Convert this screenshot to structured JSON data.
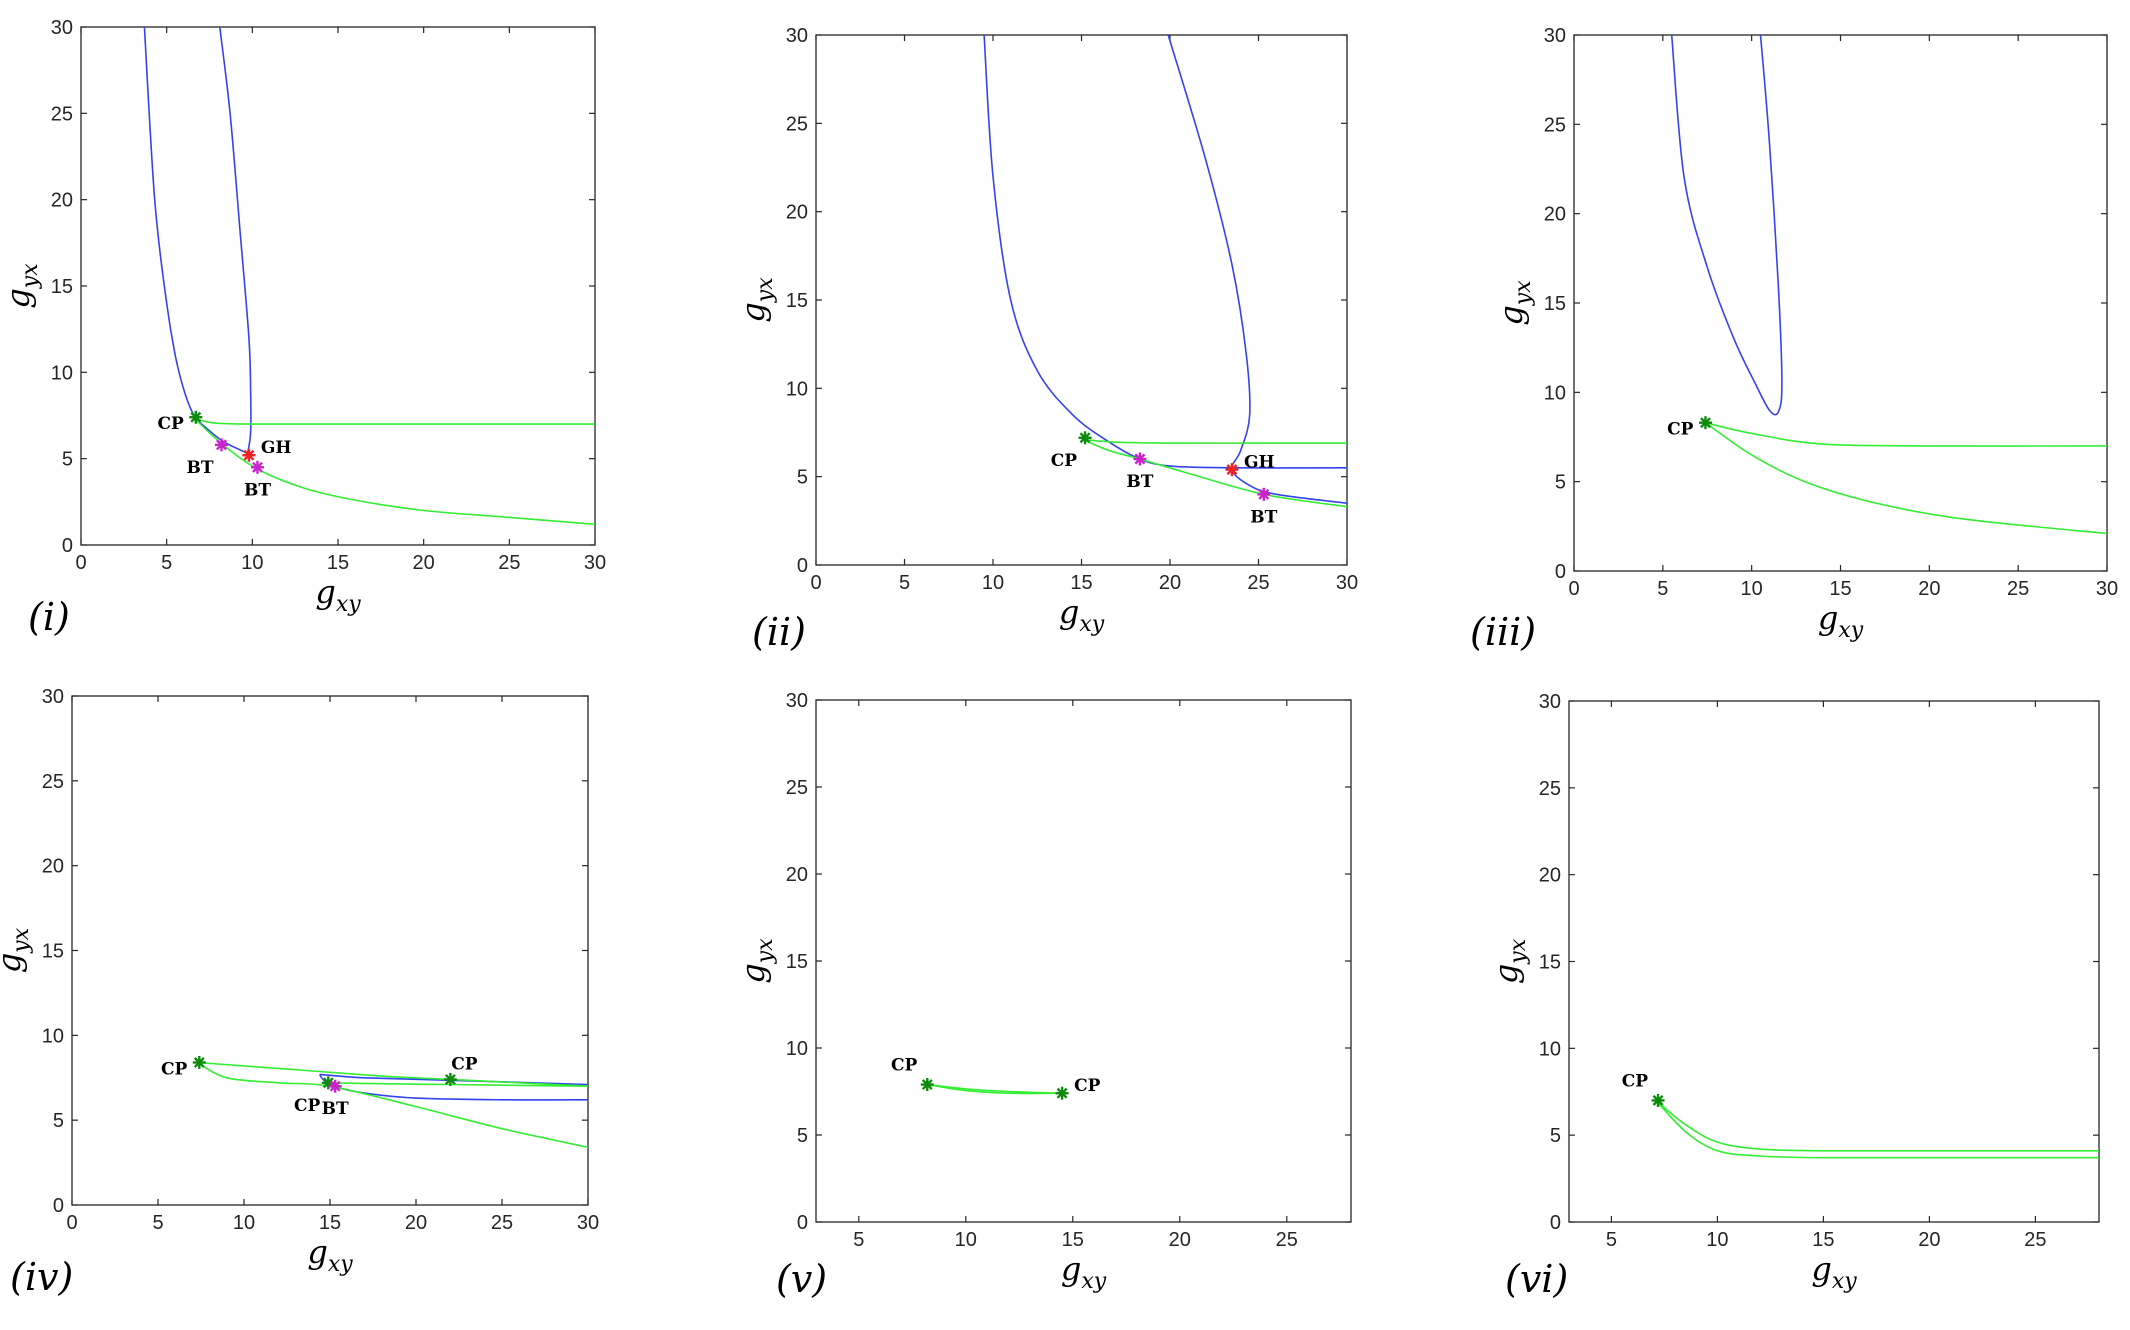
{
  "figure": {
    "colors": {
      "blue": "#3344ee",
      "green": "#33ee33",
      "cp": "#0e8a0e",
      "bt": "#cc22cc",
      "gh": "#ee2222",
      "axis": "#262626"
    },
    "xlabel_main": "g",
    "xlabel_sub": "xy",
    "ylabel_main": "g",
    "ylabel_sub": "yx"
  },
  "chart_data": [
    {
      "type": "line",
      "panel": "(i)",
      "xlim": [
        0,
        30
      ],
      "ylim": [
        0,
        30
      ],
      "xticks": [
        0,
        5,
        10,
        15,
        20,
        25,
        30
      ],
      "yticks": [
        0,
        5,
        10,
        15,
        20,
        25,
        30
      ],
      "xlabel": "g_xy",
      "ylabel": "g_yx",
      "series": [
        {
          "name": "blue-left",
          "color": "blue",
          "x": [
            3.7,
            4.3,
            5.0,
            5.5,
            6.0,
            6.6,
            7.4,
            8.3,
            9.3,
            10.0
          ],
          "y": [
            30,
            20,
            14,
            11,
            9,
            7.5,
            6.7,
            6.0,
            5.5,
            5.2
          ]
        },
        {
          "name": "blue-right",
          "color": "blue",
          "x": [
            8.1,
            8.7,
            9.3,
            9.8,
            9.9,
            9.9,
            9.7
          ],
          "y": [
            30,
            25,
            18,
            12,
            9,
            6.5,
            5.2
          ]
        },
        {
          "name": "green-upper",
          "color": "green",
          "x": [
            6.6,
            8,
            12,
            20,
            30
          ],
          "y": [
            7.35,
            7.05,
            7.0,
            7.0,
            7.0
          ]
        },
        {
          "name": "green-lower",
          "color": "green",
          "x": [
            6.6,
            8.3,
            10.3,
            13,
            16,
            20,
            25,
            30
          ],
          "y": [
            7.35,
            5.8,
            4.4,
            3.3,
            2.6,
            2.0,
            1.6,
            1.2
          ]
        }
      ],
      "markers": [
        {
          "label": "CP",
          "type": "CP",
          "x": 6.7,
          "y": 7.4,
          "pos": "left"
        },
        {
          "label": "BT",
          "type": "BT",
          "x": 8.2,
          "y": 5.8,
          "pos": "below-left"
        },
        {
          "label": "GH",
          "type": "GH",
          "x": 9.8,
          "y": 5.2,
          "pos": "right"
        },
        {
          "label": "BT",
          "type": "BT",
          "x": 10.3,
          "y": 4.5,
          "pos": "below"
        }
      ]
    },
    {
      "type": "line",
      "panel": "(ii)",
      "xlim": [
        0,
        30
      ],
      "ylim": [
        0,
        30
      ],
      "xticks": [
        0,
        5,
        10,
        15,
        20,
        25,
        30
      ],
      "yticks": [
        0,
        5,
        10,
        15,
        20,
        25,
        30
      ],
      "xlabel": "g_xy",
      "ylabel": "g_yx",
      "series": [
        {
          "name": "blue-left",
          "color": "blue",
          "x": [
            9.5,
            10.0,
            11.0,
            12.5,
            14.5,
            16.5,
            18.3,
            20,
            23.5,
            30
          ],
          "y": [
            30,
            22,
            15,
            11,
            8.5,
            7.0,
            6.0,
            5.6,
            5.5,
            5.5
          ]
        },
        {
          "name": "blue-right",
          "color": "blue",
          "x": [
            19.9,
            22.0,
            23.5,
            24.3,
            24.5,
            24.0,
            23.5,
            24.5,
            26,
            30
          ],
          "y": [
            30,
            23,
            17,
            12,
            8.5,
            6.5,
            5.4,
            4.5,
            4.0,
            3.5
          ]
        },
        {
          "name": "green-upper",
          "color": "green",
          "x": [
            15.1,
            17,
            20,
            25,
            30
          ],
          "y": [
            7.1,
            6.95,
            6.9,
            6.9,
            6.9
          ]
        },
        {
          "name": "green-lower",
          "color": "green",
          "x": [
            15.1,
            16.5,
            18.3,
            21,
            25.3,
            30
          ],
          "y": [
            7.1,
            6.5,
            6.0,
            5.2,
            4.0,
            3.3
          ]
        }
      ],
      "markers": [
        {
          "label": "CP",
          "type": "CP",
          "x": 15.2,
          "y": 7.2,
          "pos": "below-left"
        },
        {
          "label": "BT",
          "type": "BT",
          "x": 18.3,
          "y": 6.0,
          "pos": "below"
        },
        {
          "label": "GH",
          "type": "GH",
          "x": 23.5,
          "y": 5.4,
          "pos": "right"
        },
        {
          "label": "BT",
          "type": "BT",
          "x": 25.3,
          "y": 4.0,
          "pos": "below"
        }
      ]
    },
    {
      "type": "line",
      "panel": "(iii)",
      "xlim": [
        0,
        30
      ],
      "ylim": [
        0,
        30
      ],
      "xticks": [
        0,
        5,
        10,
        15,
        20,
        25,
        30
      ],
      "yticks": [
        0,
        5,
        10,
        15,
        20,
        25,
        30
      ],
      "xlabel": "g_xy",
      "ylabel": "g_yx",
      "series": [
        {
          "name": "blue-loop",
          "color": "blue",
          "x": [
            5.5,
            6.2,
            7.5,
            9.0,
            10.2,
            11.0,
            11.5,
            11.7,
            11.5,
            11.0,
            10.5
          ],
          "y": [
            30,
            22,
            17,
            13,
            10.5,
            9.0,
            8.9,
            10.5,
            16,
            24,
            30
          ]
        },
        {
          "name": "green-upper",
          "color": "green",
          "x": [
            7.4,
            10,
            14,
            20,
            30
          ],
          "y": [
            8.3,
            7.7,
            7.1,
            7.0,
            7.0
          ]
        },
        {
          "name": "green-lower",
          "color": "green",
          "x": [
            7.4,
            10,
            13,
            17,
            22,
            30
          ],
          "y": [
            8.3,
            6.5,
            5.0,
            3.8,
            2.9,
            2.1
          ]
        }
      ],
      "markers": [
        {
          "label": "CP",
          "type": "CP",
          "x": 7.4,
          "y": 8.3,
          "pos": "left"
        }
      ]
    },
    {
      "type": "line",
      "panel": "(iv)",
      "xlim": [
        0,
        30
      ],
      "ylim": [
        0,
        30
      ],
      "xticks": [
        0,
        5,
        10,
        15,
        20,
        25,
        30
      ],
      "yticks": [
        0,
        5,
        10,
        15,
        20,
        25,
        30
      ],
      "xlabel": "g_xy",
      "ylabel": "g_yx",
      "series": [
        {
          "name": "blue-upper",
          "color": "blue",
          "x": [
            14.4,
            17,
            22,
            30
          ],
          "y": [
            7.7,
            7.5,
            7.35,
            7.1
          ]
        },
        {
          "name": "blue-lower",
          "color": "blue",
          "x": [
            14.4,
            14.6,
            15.2,
            17,
            20,
            25,
            30
          ],
          "y": [
            7.7,
            7.4,
            7.0,
            6.6,
            6.3,
            6.2,
            6.2
          ]
        },
        {
          "name": "green-upper",
          "color": "green",
          "x": [
            7.3,
            10,
            14,
            18,
            22,
            30
          ],
          "y": [
            8.4,
            8.2,
            7.9,
            7.6,
            7.4,
            7.0
          ]
        },
        {
          "name": "green-lower",
          "color": "green",
          "x": [
            7.3,
            9,
            12,
            15,
            20,
            25,
            30
          ],
          "y": [
            8.4,
            7.5,
            7.2,
            7.0,
            5.8,
            4.5,
            3.4
          ]
        },
        {
          "name": "green-mid",
          "color": "green",
          "x": [
            14.9,
            18,
            22,
            26,
            30
          ],
          "y": [
            7.2,
            7.15,
            7.1,
            7.05,
            7.0
          ]
        }
      ],
      "markers": [
        {
          "label": "CP",
          "type": "CP",
          "x": 7.4,
          "y": 8.4,
          "pos": "left"
        },
        {
          "label": "CP",
          "type": "CP",
          "x": 22.0,
          "y": 7.4,
          "pos": "above"
        },
        {
          "label": "CP",
          "type": "CP",
          "x": 14.9,
          "y": 7.2,
          "pos": "below-left"
        },
        {
          "label": "BT",
          "type": "BT",
          "x": 15.3,
          "y": 7.0,
          "pos": "below"
        }
      ]
    },
    {
      "type": "line",
      "panel": "(v)",
      "xlim": [
        3,
        28
      ],
      "ylim": [
        0,
        30
      ],
      "xticks": [
        5,
        10,
        15,
        20,
        25
      ],
      "yticks": [
        0,
        5,
        10,
        15,
        20,
        25,
        30
      ],
      "xlabel": "g_xy",
      "ylabel": "g_yx",
      "series": [
        {
          "name": "green-upper",
          "color": "green",
          "x": [
            8.2,
            10,
            12,
            14.5
          ],
          "y": [
            7.9,
            7.65,
            7.5,
            7.4
          ]
        },
        {
          "name": "green-lower",
          "color": "green",
          "x": [
            8.2,
            10,
            12,
            14.5
          ],
          "y": [
            7.9,
            7.55,
            7.4,
            7.4
          ]
        }
      ],
      "markers": [
        {
          "label": "CP",
          "type": "CP",
          "x": 8.2,
          "y": 7.9,
          "pos": "above-left"
        },
        {
          "label": "CP",
          "type": "CP",
          "x": 14.5,
          "y": 7.4,
          "pos": "right"
        }
      ]
    },
    {
      "type": "line",
      "panel": "(vi)",
      "xlim": [
        3,
        28
      ],
      "ylim": [
        0,
        30
      ],
      "xticks": [
        5,
        10,
        15,
        20,
        25
      ],
      "yticks": [
        0,
        5,
        10,
        15,
        20,
        25,
        30
      ],
      "xlabel": "g_xy",
      "ylabel": "g_yx",
      "series": [
        {
          "name": "green-upper",
          "color": "green",
          "x": [
            7.1,
            8.5,
            10,
            12,
            15,
            20,
            28
          ],
          "y": [
            7.0,
            5.6,
            4.6,
            4.2,
            4.1,
            4.1,
            4.1
          ]
        },
        {
          "name": "green-lower",
          "color": "green",
          "x": [
            7.1,
            8.5,
            10,
            12,
            15,
            20,
            28
          ],
          "y": [
            7.0,
            5.2,
            4.1,
            3.8,
            3.7,
            3.7,
            3.7
          ]
        }
      ],
      "markers": [
        {
          "label": "CP",
          "type": "CP",
          "x": 7.2,
          "y": 7.0,
          "pos": "above-left"
        }
      ]
    }
  ]
}
